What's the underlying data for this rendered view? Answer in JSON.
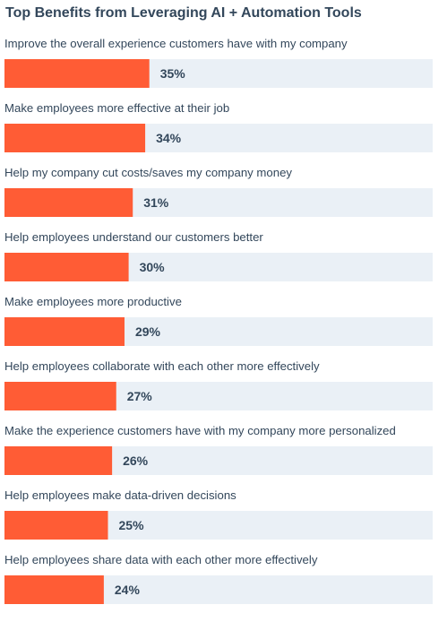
{
  "chart_data": {
    "type": "bar",
    "orientation": "horizontal",
    "title": "Top Benefits from Leveraging AI + Automation Tools",
    "categories": [
      "Improve the overall experience customers have with my company",
      "Make employees more effective at their job",
      "Help my company cut costs/saves my company money",
      "Help employees understand our customers better",
      "Make employees more productive",
      "Help employees collaborate with each other more effectively",
      "Make the experience customers have with my company more personalized",
      "Help employees make data-driven decisions",
      "Help employees share data with each other more effectively"
    ],
    "values": [
      35,
      34,
      31,
      30,
      29,
      27,
      26,
      25,
      24
    ],
    "value_labels": [
      "35%",
      "34%",
      "31%",
      "30%",
      "29%",
      "27%",
      "26%",
      "25%",
      "24%"
    ],
    "unit": "%",
    "xlim": [
      0,
      100
    ],
    "grid": false,
    "legend": "none",
    "colors": {
      "bar": "#ff5c35",
      "track": "#eaf0f6",
      "text": "#33475b"
    }
  }
}
